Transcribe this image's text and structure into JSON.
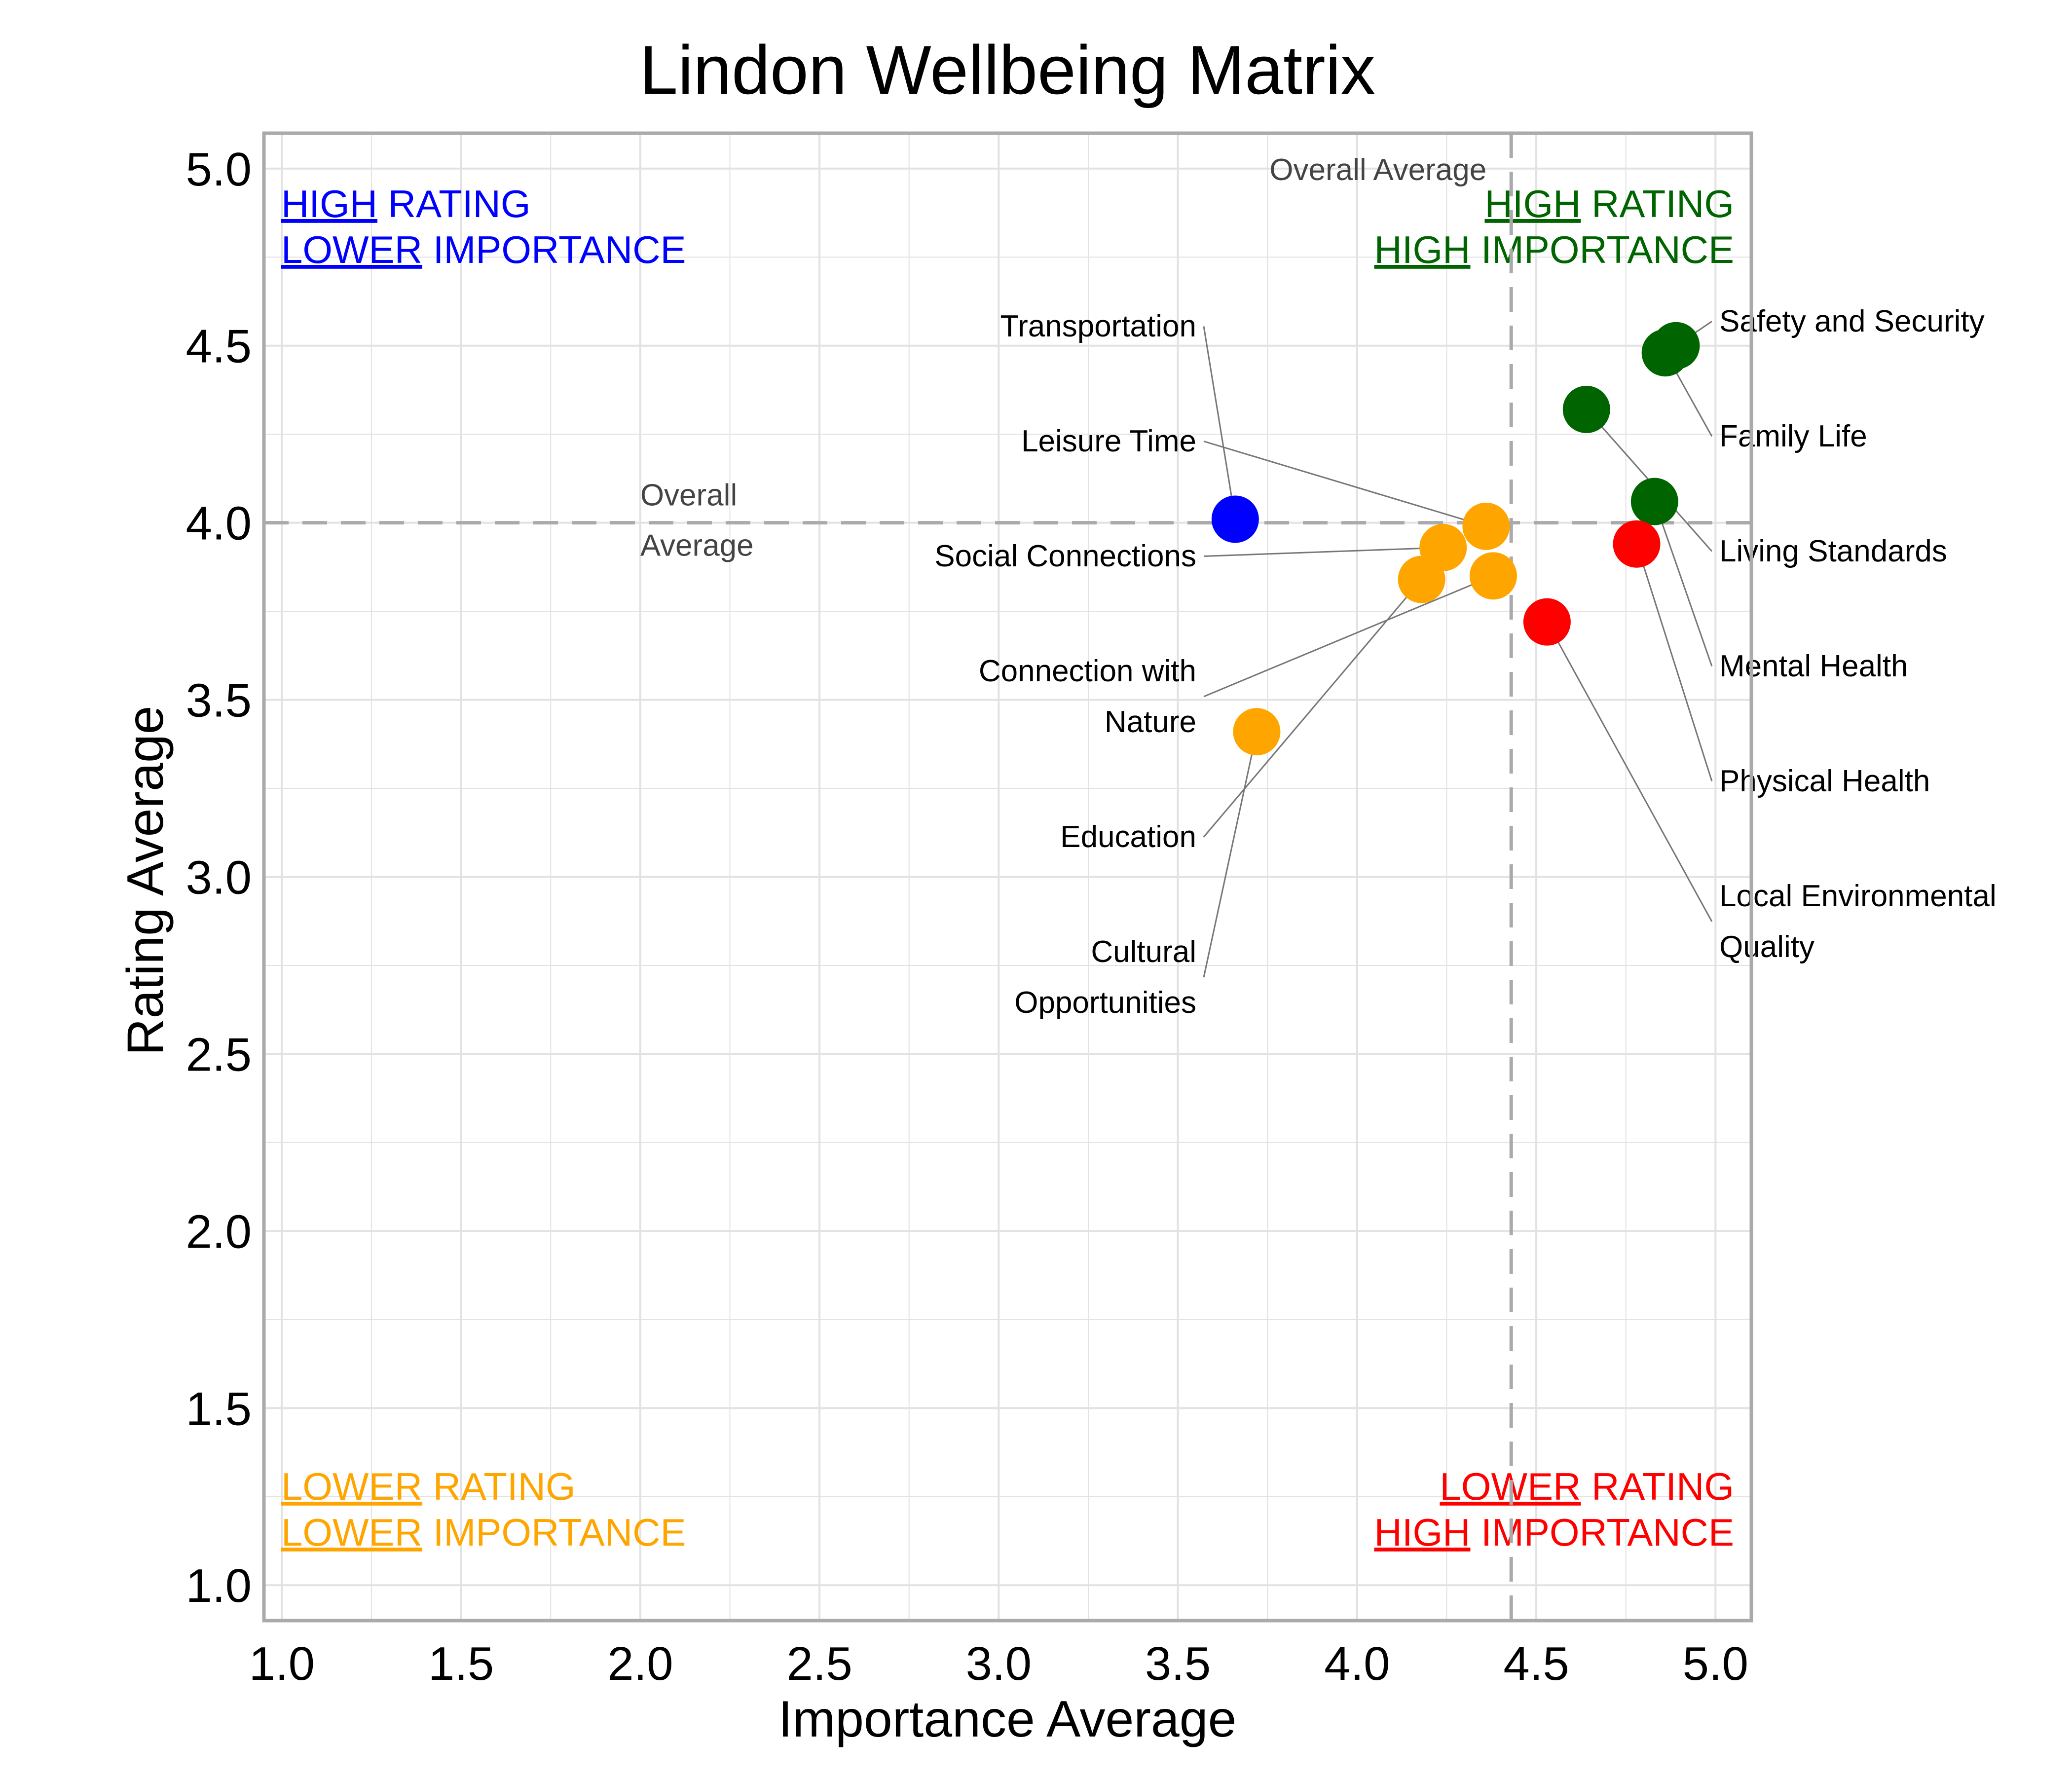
{
  "chart_data": {
    "type": "scatter",
    "title": "Lindon Wellbeing Matrix",
    "xlabel": "Importance Average",
    "ylabel": "Rating Average",
    "xlim": [
      0.95,
      5.1
    ],
    "ylim": [
      0.9,
      5.1
    ],
    "xticks": [
      "1.0",
      "1.5",
      "2.0",
      "2.5",
      "3.0",
      "3.5",
      "4.0",
      "4.5",
      "5.0"
    ],
    "yticks": [
      "1.0",
      "1.5",
      "2.0",
      "2.5",
      "3.0",
      "3.5",
      "4.0",
      "4.5",
      "5.0"
    ],
    "grid": true,
    "overall_average": {
      "x": 4.43,
      "y": 4.0,
      "x_label": "Overall Average",
      "y_label": [
        "Overall",
        "Average"
      ]
    },
    "quadrant_labels": {
      "top_left": [
        {
          "under": "HIGH",
          "rest": " RATING"
        },
        {
          "under": "LOWER",
          "rest": " IMPORTANCE"
        }
      ],
      "top_right": [
        {
          "under": "HIGH",
          "rest": " RATING"
        },
        {
          "under": "HIGH",
          "rest": " IMPORTANCE"
        }
      ],
      "bottom_left": [
        {
          "under": "LOWER",
          "rest": " RATING"
        },
        {
          "under": "LOWER",
          "rest": " IMPORTANCE"
        }
      ],
      "bottom_right": [
        {
          "under": "LOWER",
          "rest": " RATING"
        },
        {
          "under": "HIGH",
          "rest": " IMPORTANCE"
        }
      ]
    },
    "colors": {
      "high_rating_high_importance": "#006400",
      "high_rating_lower_importance": "#0000ff",
      "lower_rating_lower_importance": "#ffa500",
      "lower_rating_high_importance": "#ff0000",
      "grid": "#e2e2e2",
      "reference_line": "#aaaaaa",
      "frame": "#aaaaaa",
      "connector": "#777777"
    },
    "points": [
      {
        "name": "Safety and Security",
        "label": [
          "Safety and Security"
        ],
        "x": 4.89,
        "y": 4.5,
        "quadrant": "high_rating_high_importance",
        "label_side": "right"
      },
      {
        "name": "Family Life",
        "label": [
          "Family Life"
        ],
        "x": 4.86,
        "y": 4.48,
        "quadrant": "high_rating_high_importance",
        "label_side": "right"
      },
      {
        "name": "Living Standards",
        "label": [
          "Living Standards"
        ],
        "x": 4.64,
        "y": 4.32,
        "quadrant": "high_rating_high_importance",
        "label_side": "right"
      },
      {
        "name": "Mental Health",
        "label": [
          "Mental Health"
        ],
        "x": 4.83,
        "y": 4.06,
        "quadrant": "high_rating_high_importance",
        "label_side": "right"
      },
      {
        "name": "Physical Health",
        "label": [
          "Physical Health"
        ],
        "x": 4.78,
        "y": 3.94,
        "quadrant": "lower_rating_high_importance",
        "label_side": "right"
      },
      {
        "name": "Local Environmental Quality",
        "label": [
          "Local Environmental",
          "Quality"
        ],
        "x": 4.53,
        "y": 3.72,
        "quadrant": "lower_rating_high_importance",
        "label_side": "right"
      },
      {
        "name": "Leisure Time",
        "label": [
          "Leisure Time"
        ],
        "x": 4.36,
        "y": 3.99,
        "quadrant": "lower_rating_lower_importance",
        "label_side": "left"
      },
      {
        "name": "Transportation",
        "label": [
          "Transportation"
        ],
        "x": 3.66,
        "y": 4.01,
        "quadrant": "high_rating_lower_importance",
        "label_side": "left"
      },
      {
        "name": "Social Connections",
        "label": [
          "Social Connections"
        ],
        "x": 4.24,
        "y": 3.93,
        "quadrant": "lower_rating_lower_importance",
        "label_side": "left"
      },
      {
        "name": "Education",
        "label": [
          "Education"
        ],
        "x": 4.18,
        "y": 3.84,
        "quadrant": "lower_rating_lower_importance",
        "label_side": "left"
      },
      {
        "name": "Connection with Nature",
        "label": [
          "Connection with",
          "Nature"
        ],
        "x": 4.38,
        "y": 3.85,
        "quadrant": "lower_rating_lower_importance",
        "label_side": "left"
      },
      {
        "name": "Cultural Opportunities",
        "label": [
          "Cultural",
          "Opportunities"
        ],
        "x": 3.72,
        "y": 3.41,
        "quadrant": "lower_rating_lower_importance",
        "label_side": "left"
      }
    ]
  }
}
